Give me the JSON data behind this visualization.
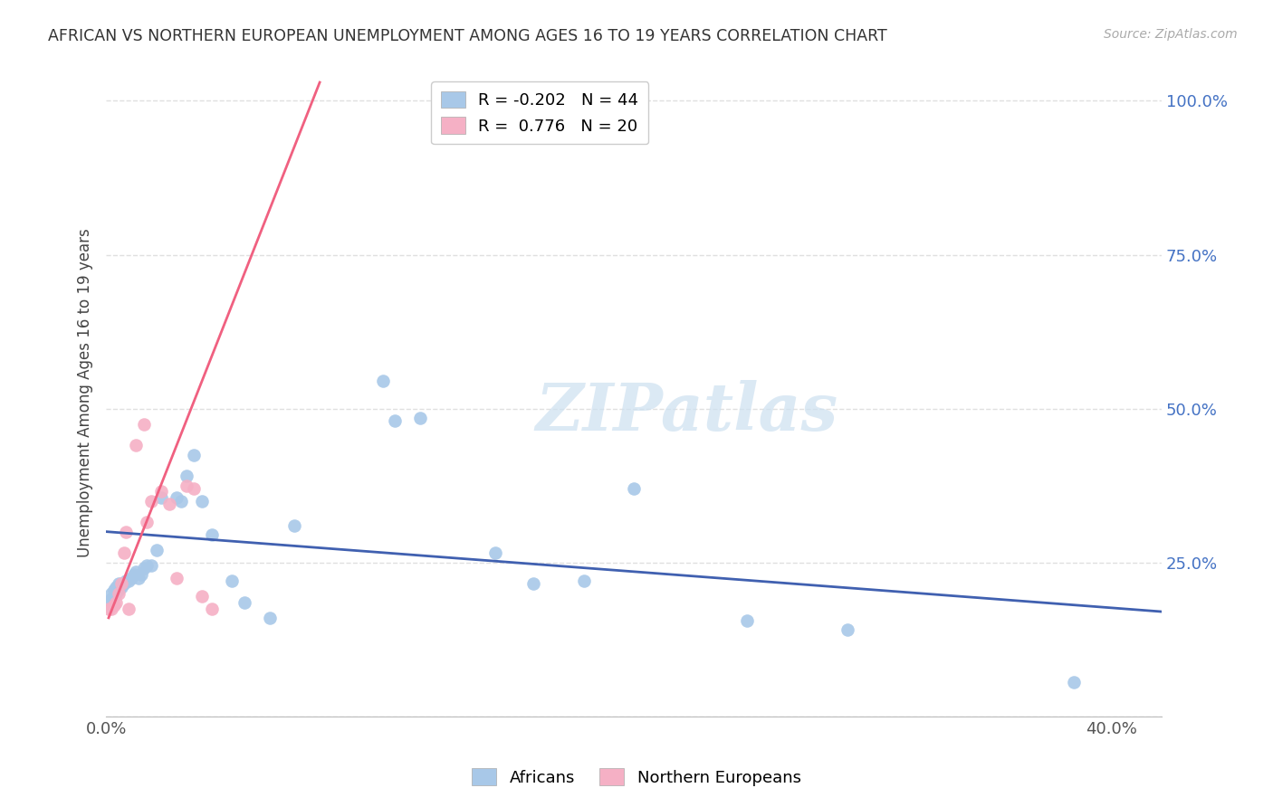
{
  "title": "AFRICAN VS NORTHERN EUROPEAN UNEMPLOYMENT AMONG AGES 16 TO 19 YEARS CORRELATION CHART",
  "source": "Source: ZipAtlas.com",
  "ylabel": "Unemployment Among Ages 16 to 19 years",
  "xlim": [
    0.0,
    0.42
  ],
  "ylim": [
    0.0,
    1.05
  ],
  "bg_color": "#ffffff",
  "grid_color": "#e0e0e0",
  "blue_color": "#a8c8e8",
  "pink_color": "#f5b0c5",
  "blue_line_color": "#4060b0",
  "pink_line_color": "#f06080",
  "legend_R_blue": "-0.202",
  "legend_N_blue": "44",
  "legend_R_pink": "0.776",
  "legend_N_pink": "20",
  "africans_x": [
    0.001,
    0.002,
    0.002,
    0.003,
    0.003,
    0.004,
    0.004,
    0.005,
    0.005,
    0.006,
    0.006,
    0.007,
    0.008,
    0.009,
    0.01,
    0.011,
    0.012,
    0.013,
    0.014,
    0.015,
    0.016,
    0.018,
    0.02,
    0.022,
    0.028,
    0.03,
    0.032,
    0.035,
    0.038,
    0.042,
    0.05,
    0.055,
    0.065,
    0.075,
    0.11,
    0.115,
    0.125,
    0.155,
    0.17,
    0.19,
    0.21,
    0.255,
    0.295,
    0.385
  ],
  "africans_y": [
    0.185,
    0.19,
    0.2,
    0.195,
    0.205,
    0.2,
    0.21,
    0.205,
    0.215,
    0.21,
    0.215,
    0.215,
    0.22,
    0.22,
    0.225,
    0.23,
    0.235,
    0.225,
    0.23,
    0.24,
    0.245,
    0.245,
    0.27,
    0.355,
    0.355,
    0.35,
    0.39,
    0.425,
    0.35,
    0.295,
    0.22,
    0.185,
    0.16,
    0.31,
    0.545,
    0.48,
    0.485,
    0.265,
    0.215,
    0.22,
    0.37,
    0.155,
    0.14,
    0.055
  ],
  "northern_x": [
    0.001,
    0.002,
    0.003,
    0.004,
    0.005,
    0.006,
    0.007,
    0.008,
    0.009,
    0.012,
    0.015,
    0.016,
    0.018,
    0.022,
    0.025,
    0.028,
    0.032,
    0.035,
    0.038,
    0.042
  ],
  "northern_y": [
    0.175,
    0.175,
    0.18,
    0.185,
    0.2,
    0.215,
    0.265,
    0.3,
    0.175,
    0.44,
    0.475,
    0.315,
    0.35,
    0.365,
    0.345,
    0.225,
    0.375,
    0.37,
    0.195,
    0.175
  ],
  "watermark_text": "ZIPatlas",
  "blue_trendline_x0": 0.0,
  "blue_trendline_y0": 0.3,
  "blue_trendline_x1": 0.42,
  "blue_trendline_y1": 0.17,
  "pink_trendline_x0": 0.001,
  "pink_trendline_y0": 0.16,
  "pink_trendline_x1": 0.085,
  "pink_trendline_y1": 1.03
}
